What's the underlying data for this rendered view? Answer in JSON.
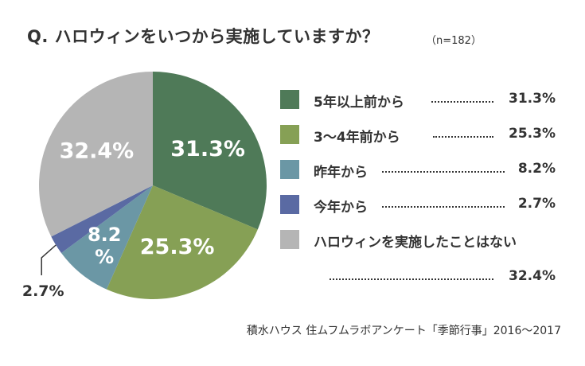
{
  "header": {
    "title": "Q. ハロウィンをいつから実施していますか？",
    "sample": "（n=182）"
  },
  "source": "積水ハウス 住ムフムラボアンケート「季節行事」2016〜2017",
  "chart_data": {
    "type": "pie",
    "title": "Q. ハロウィンをいつから実施していますか？",
    "categories": [
      "5年以上前から",
      "3〜4年前から",
      "昨年から",
      "今年から",
      "ハロウィンを実施したことはない"
    ],
    "values": [
      31.3,
      25.3,
      8.2,
      2.7,
      32.4
    ],
    "value_labels": [
      "31.3%",
      "25.3%",
      "8.2%",
      "2.7%",
      "32.4%"
    ],
    "colors": [
      "#4f7a58",
      "#86a055",
      "#6b97a5",
      "#5a6aa3",
      "#b5b5b5"
    ],
    "legend_position": "right"
  }
}
